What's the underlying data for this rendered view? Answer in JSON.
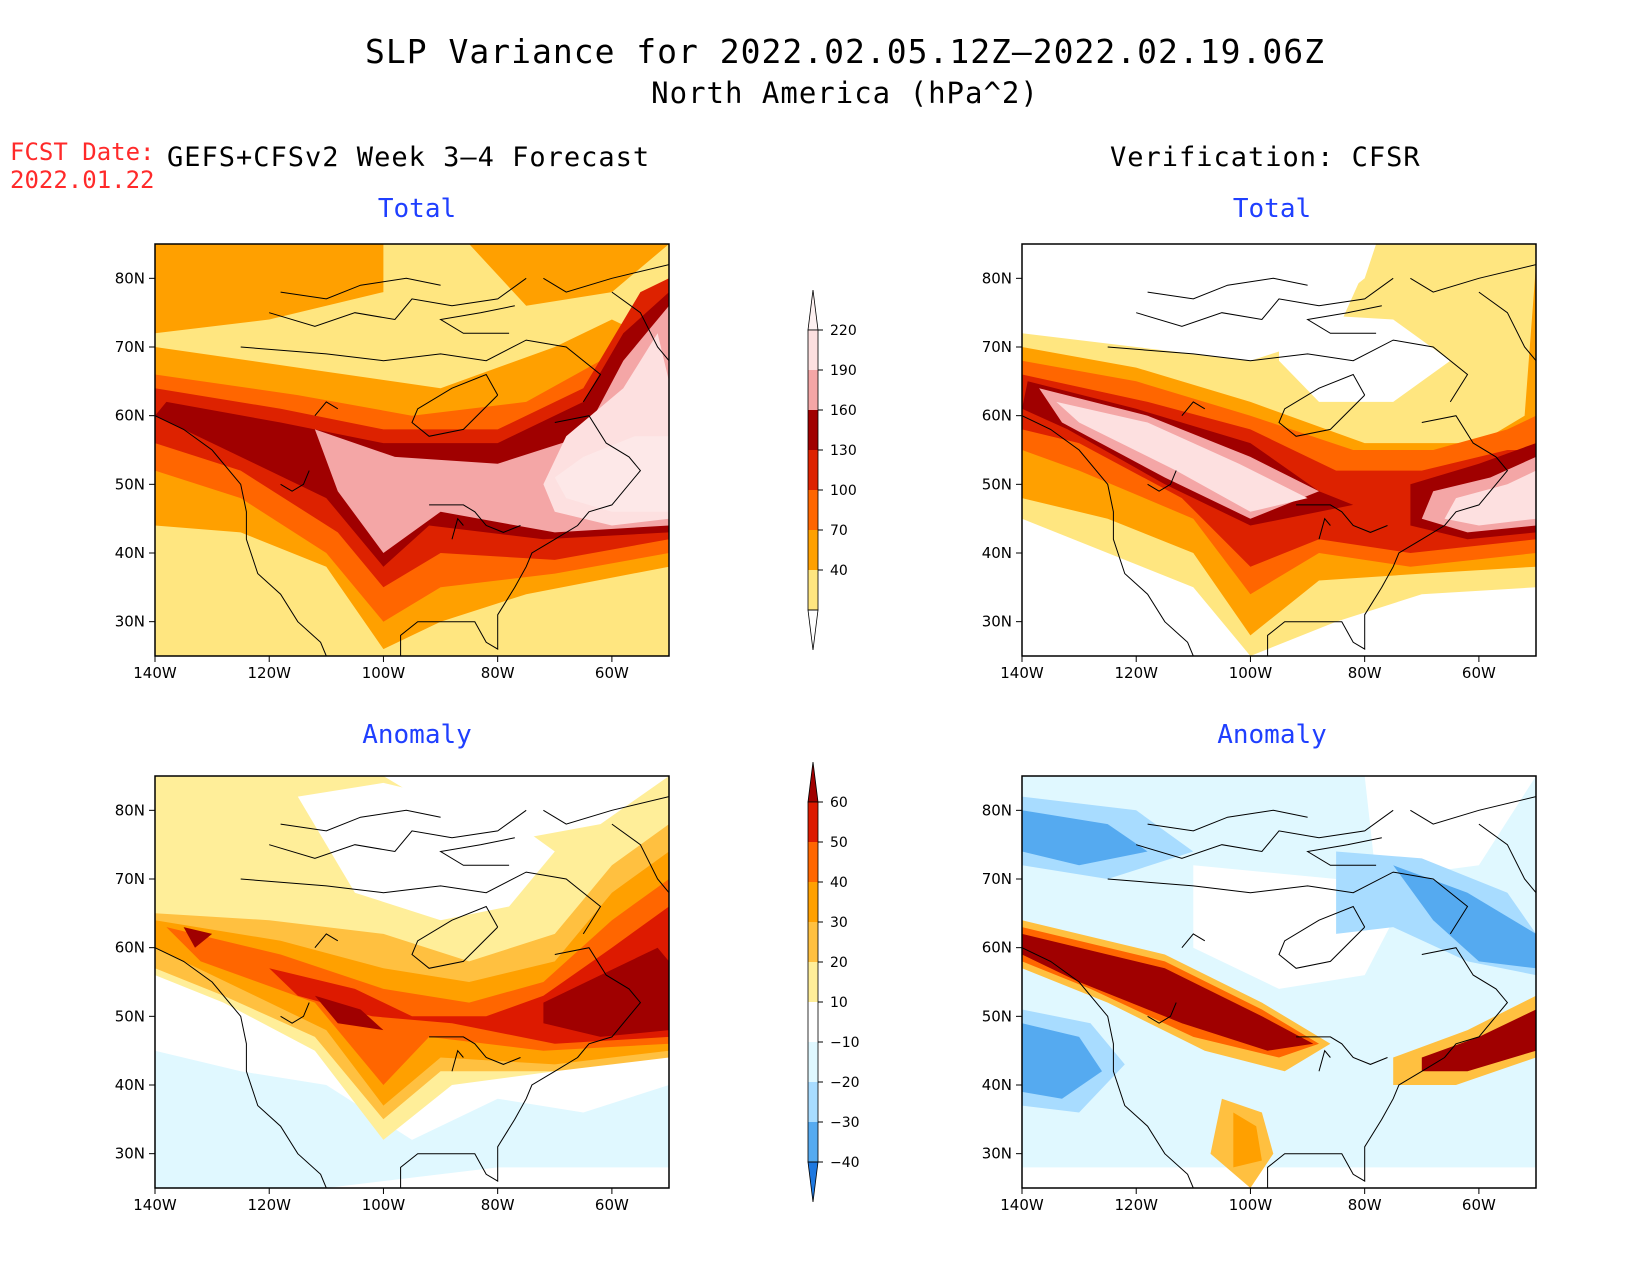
{
  "title": "SLP Variance for 2022.02.05.12Z–2022.02.19.06Z",
  "subtitle": "North America (hPa^2)",
  "forecast_date_label": "FCST Date:",
  "forecast_date": "2022.01.22",
  "left_heading": "GEFS+CFSv2 Week 3–4 Forecast",
  "right_heading": "Verification: CFSR",
  "panels": [
    {
      "title": "Total"
    },
    {
      "title": "Total"
    },
    {
      "title": "Anomaly"
    },
    {
      "title": "Anomaly"
    }
  ],
  "map": {
    "lon_ticks": [
      "140W",
      "120W",
      "100W",
      "80W",
      "60W"
    ],
    "lat_ticks": [
      "80N",
      "70N",
      "60N",
      "50N",
      "40N",
      "30N"
    ],
    "lon_range": [
      -140,
      -50
    ],
    "lat_range": [
      25,
      85
    ]
  },
  "colorbars": {
    "total": {
      "levels": [
        "220",
        "190",
        "160",
        "130",
        "100",
        "70",
        "40"
      ],
      "colors": [
        "#fde0e0",
        "#f4a6a6",
        "#a00000",
        "#dd2200",
        "#ff6600",
        "#ffa000",
        "#ffe680"
      ]
    },
    "anomaly": {
      "levels": [
        "60",
        "50",
        "40",
        "30",
        "20",
        "10",
        "−10",
        "−20",
        "−30",
        "−40"
      ],
      "colors": [
        "#a00000",
        "#dd1a00",
        "#ff6600",
        "#ffa000",
        "#ffc040",
        "#ffee99",
        "#ffffff",
        "#e0f8ff",
        "#a8dcff",
        "#55aaf0",
        "#1e78e0"
      ]
    }
  },
  "colors": {
    "fcst_red": "#ff2a2a",
    "panel_title_blue": "#1f3fff"
  }
}
